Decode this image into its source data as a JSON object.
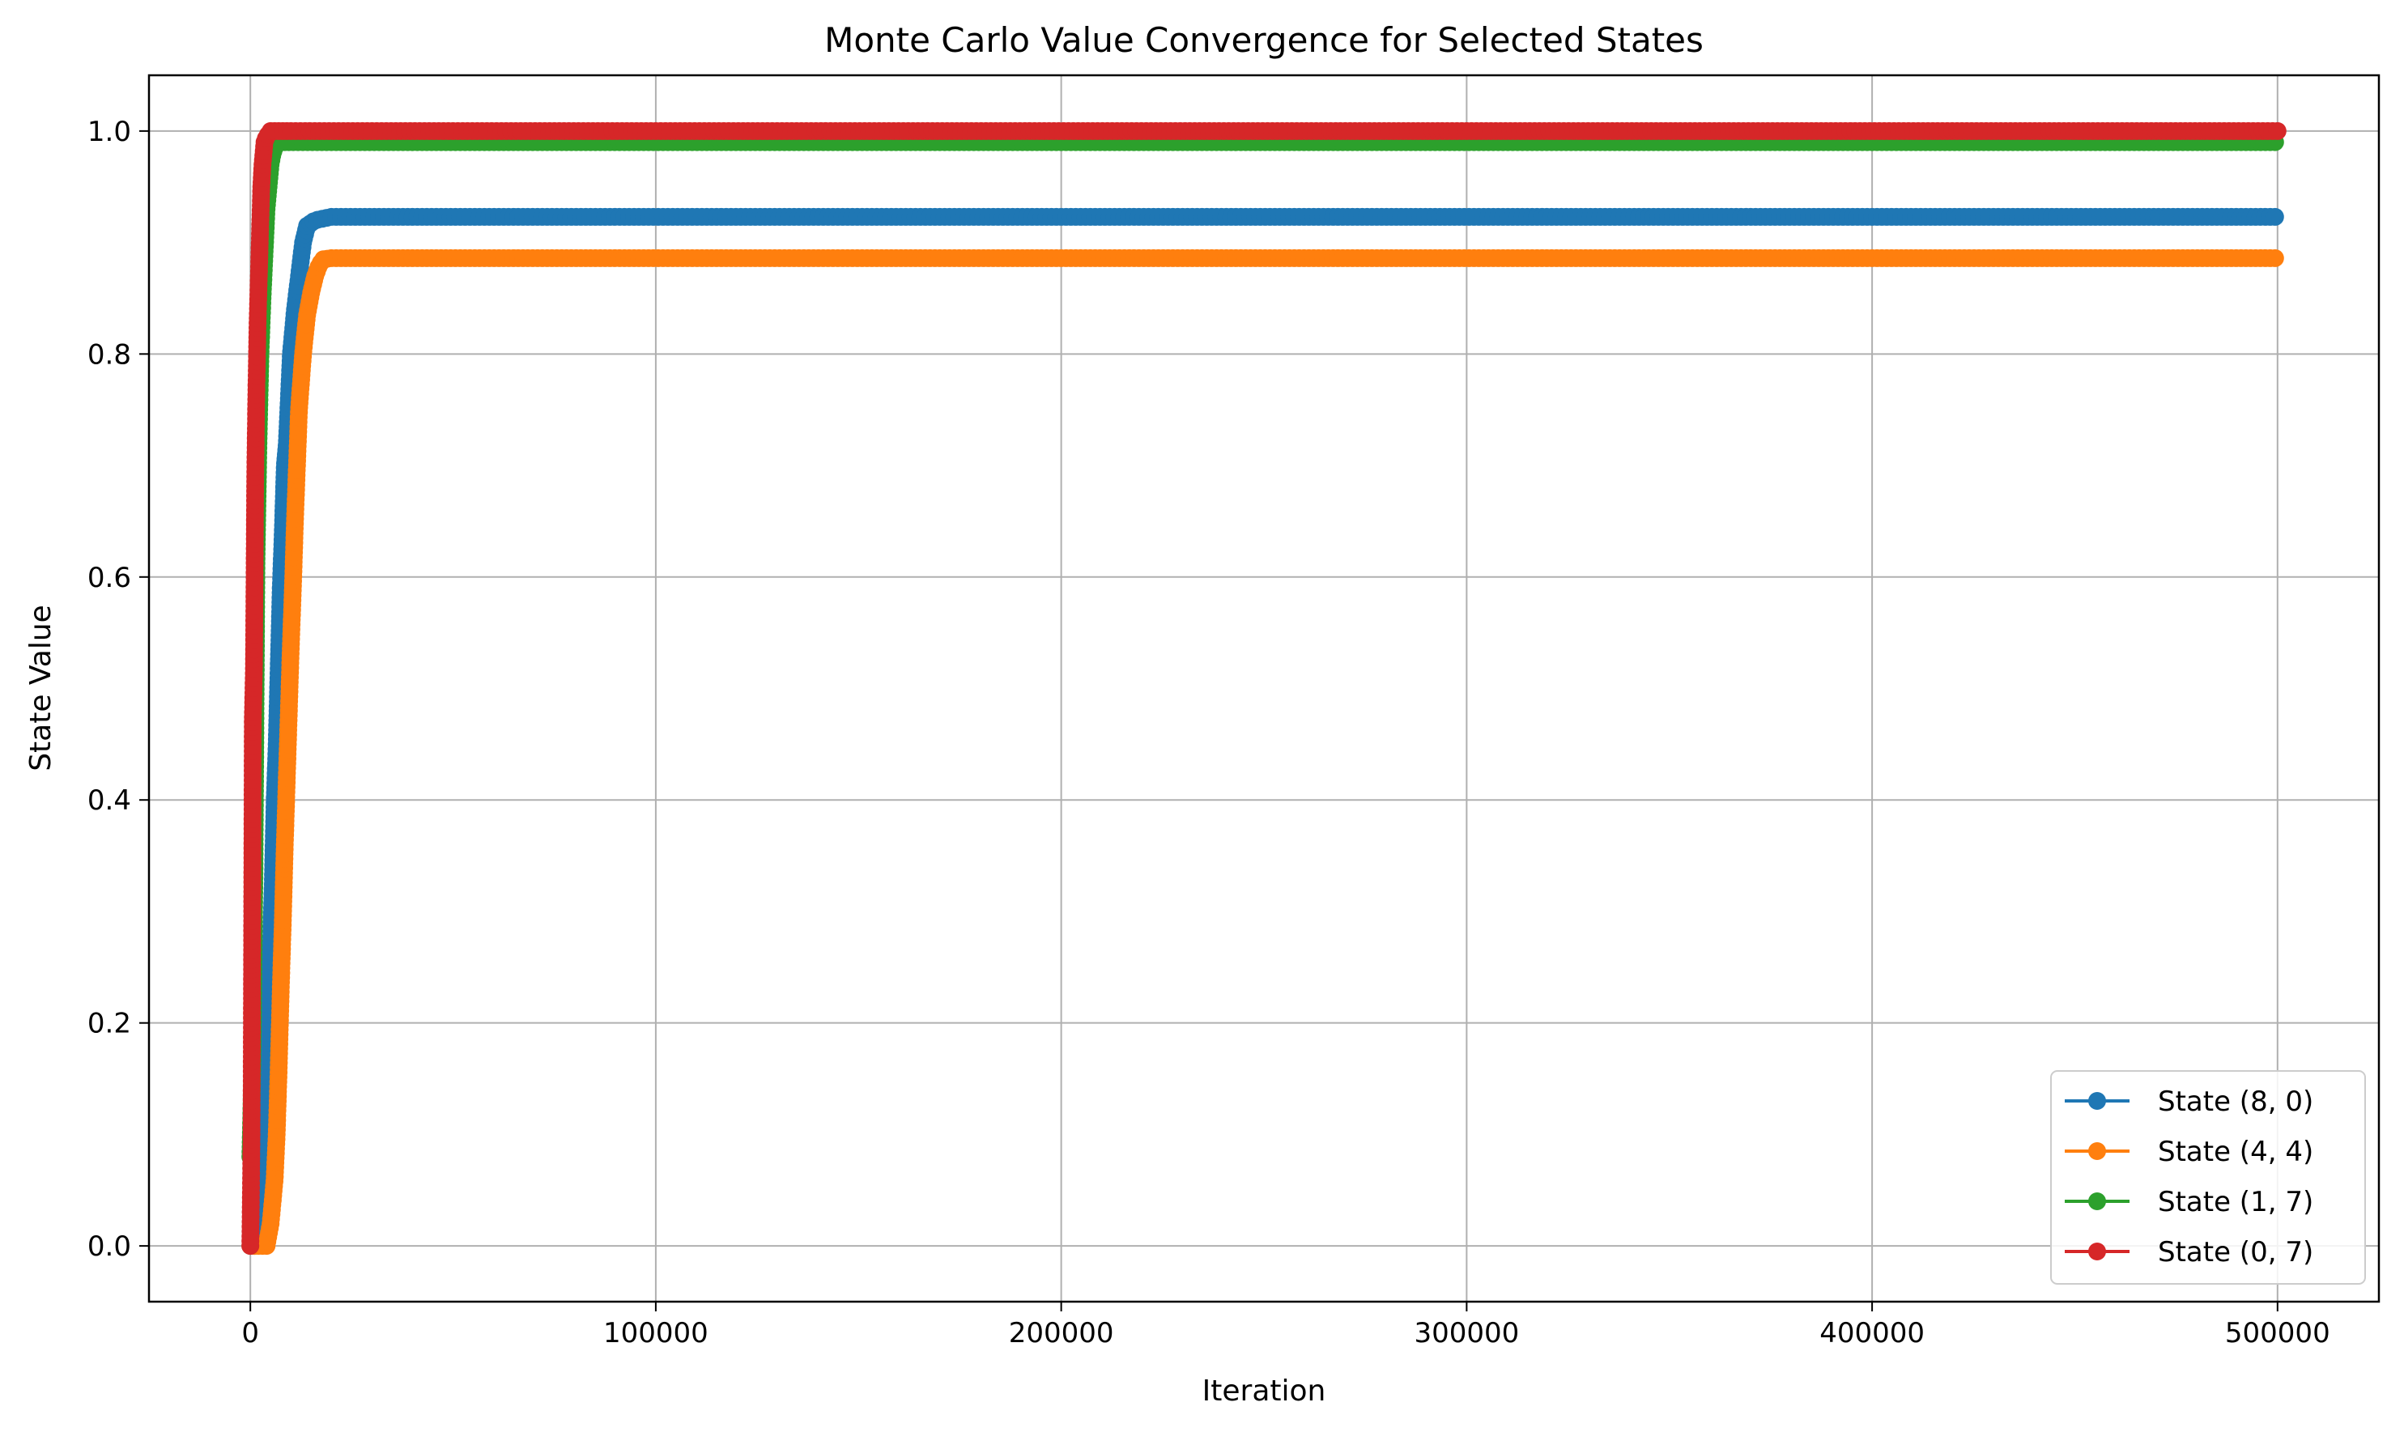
{
  "chart_data": {
    "type": "line",
    "title": "Monte Carlo Value Convergence for Selected States",
    "xlabel": "Iteration",
    "ylabel": "State Value",
    "xlim": [
      -25000,
      525000
    ],
    "ylim": [
      -0.05,
      1.05
    ],
    "x_ticks": [
      0,
      100000,
      200000,
      300000,
      400000,
      500000
    ],
    "x_tick_labels": [
      "0",
      "100000",
      "200000",
      "300000",
      "400000",
      "500000"
    ],
    "y_ticks": [
      0.0,
      0.2,
      0.4,
      0.6,
      0.8,
      1.0
    ],
    "y_tick_labels": [
      "0.0",
      "0.2",
      "0.4",
      "0.6",
      "0.8",
      "1.0"
    ],
    "grid": true,
    "legend_position": "lower-right",
    "marker": "circle",
    "series": [
      {
        "name": "State (8, 0)",
        "color": "#1f77b4",
        "x": [
          0,
          1000,
          2000,
          3000,
          3500,
          4000,
          4500,
          5000,
          5500,
          6000,
          6500,
          7000,
          7500,
          8000,
          8500,
          9000,
          9500,
          10000,
          11000,
          12000,
          13000,
          14000,
          16000,
          20000,
          30000,
          50000,
          100000,
          200000,
          300000,
          400000,
          500000
        ],
        "y": [
          0.0,
          0.0,
          0.02,
          0.08,
          0.13,
          0.17,
          0.21,
          0.26,
          0.32,
          0.4,
          0.45,
          0.52,
          0.59,
          0.64,
          0.7,
          0.72,
          0.76,
          0.8,
          0.84,
          0.87,
          0.9,
          0.915,
          0.92,
          0.923,
          0.923,
          0.923,
          0.923,
          0.923,
          0.923,
          0.923,
          0.923
        ]
      },
      {
        "name": "State (4, 4)",
        "color": "#ff7f0e",
        "x": [
          0,
          2000,
          4000,
          5000,
          6000,
          6500,
          7000,
          7500,
          8000,
          8500,
          9000,
          9500,
          10000,
          10500,
          11000,
          11500,
          12000,
          13000,
          14000,
          15000,
          16000,
          17000,
          18000,
          20000,
          30000,
          50000,
          100000,
          200000,
          300000,
          400000,
          500000
        ],
        "y": [
          0.0,
          0.0,
          0.0,
          0.02,
          0.06,
          0.1,
          0.16,
          0.23,
          0.29,
          0.36,
          0.42,
          0.48,
          0.54,
          0.59,
          0.65,
          0.7,
          0.75,
          0.8,
          0.835,
          0.855,
          0.87,
          0.88,
          0.885,
          0.886,
          0.886,
          0.886,
          0.886,
          0.886,
          0.886,
          0.886,
          0.886
        ]
      },
      {
        "name": "State (1, 7)",
        "color": "#2ca02c",
        "x": [
          0,
          500,
          1000,
          1500,
          2000,
          2500,
          3000,
          3500,
          4000,
          4500,
          5000,
          5500,
          6000,
          7000,
          8000,
          10000,
          20000,
          50000,
          100000,
          200000,
          300000,
          400000,
          500000
        ],
        "y": [
          0.08,
          0.16,
          0.33,
          0.61,
          0.72,
          0.8,
          0.85,
          0.89,
          0.93,
          0.95,
          0.97,
          0.98,
          0.985,
          0.99,
          0.99,
          0.99,
          0.99,
          0.99,
          0.99,
          0.99,
          0.99,
          0.99,
          0.99
        ]
      },
      {
        "name": "State (0, 7)",
        "color": "#d62728",
        "x": [
          0,
          300,
          600,
          900,
          1200,
          1500,
          1800,
          2100,
          2400,
          2700,
          3000,
          3500,
          4000,
          5000,
          6000,
          8000,
          10000,
          20000,
          50000,
          100000,
          200000,
          300000,
          400000,
          500000
        ],
        "y": [
          0.0,
          0.1,
          0.47,
          0.52,
          0.69,
          0.77,
          0.83,
          0.87,
          0.91,
          0.95,
          0.97,
          0.99,
          0.995,
          1.0,
          1.0,
          1.0,
          1.0,
          1.0,
          1.0,
          1.0,
          1.0,
          1.0,
          1.0,
          1.0
        ]
      }
    ]
  }
}
